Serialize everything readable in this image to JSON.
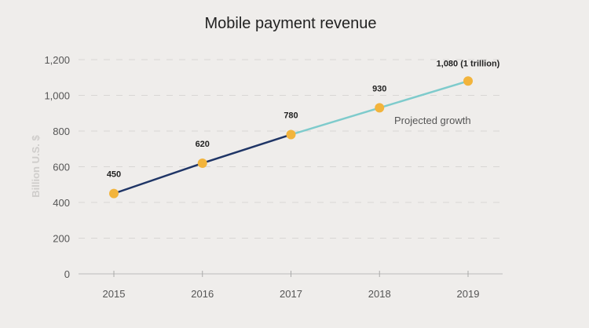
{
  "chart_data": {
    "type": "line",
    "title": "Mobile payment revenue",
    "ylabel": "Billion U.S. $",
    "xlabel": "",
    "categories": [
      "2015",
      "2016",
      "2017",
      "2018",
      "2019"
    ],
    "values": [
      450,
      620,
      780,
      930,
      1080
    ],
    "data_labels": [
      "450",
      "620",
      "780",
      "930",
      "1,080 (1 trillion)"
    ],
    "yticks": [
      "0",
      "200",
      "400",
      "600",
      "800",
      "1,000",
      "1,200"
    ],
    "ylim": [
      0,
      1200
    ],
    "grid": true,
    "annotation": "Projected growth",
    "projected_from": "2017",
    "colors": {
      "actual": "#1f3566",
      "projected": "#7ecbcc",
      "point": "#f2b43c",
      "grid": "#d8d6d4",
      "text": "#555555"
    }
  }
}
